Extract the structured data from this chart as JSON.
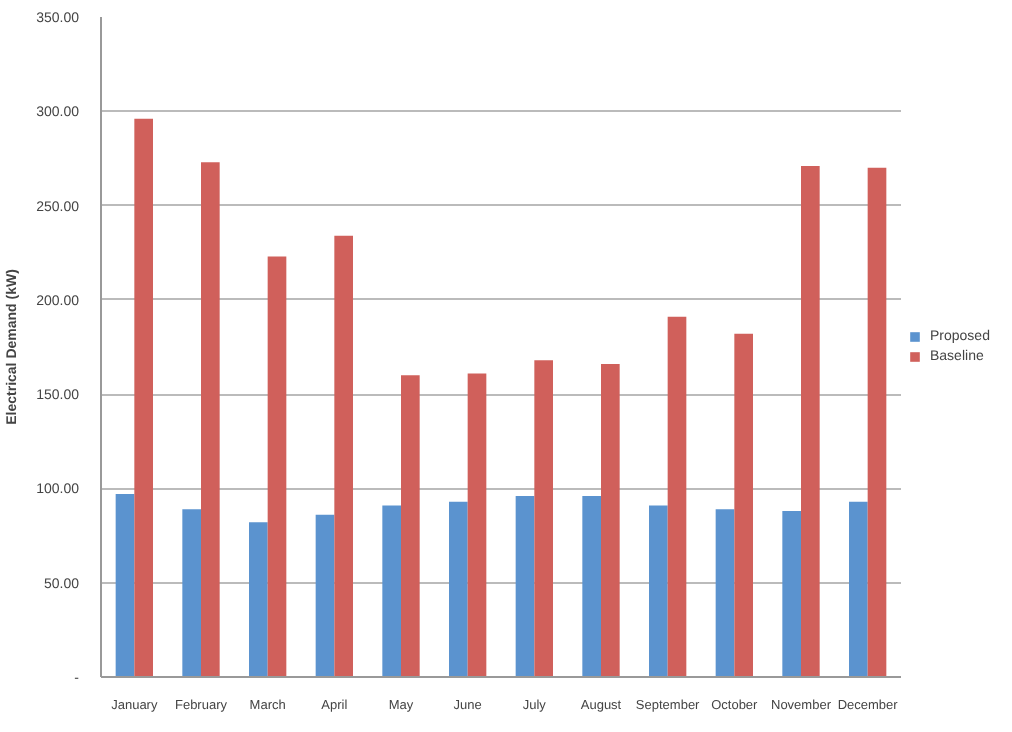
{
  "chart_data": {
    "type": "bar",
    "ylabel": "Electrical Demand (kW)",
    "categories": [
      "January",
      "February",
      "March",
      "April",
      "May",
      "June",
      "July",
      "August",
      "September",
      "October",
      "November",
      "December"
    ],
    "series": [
      {
        "name": "Proposed",
        "color": "#5b93cf",
        "values": [
          97,
          89,
          82,
          86,
          91,
          93,
          96,
          96,
          91,
          89,
          88,
          93
        ]
      },
      {
        "name": "Baseline",
        "color": "#d0605b",
        "values": [
          296,
          273,
          223,
          234,
          160,
          161,
          168,
          166,
          191,
          182,
          271,
          270
        ]
      }
    ],
    "ylim": [
      0,
      350
    ],
    "yticks": [
      {
        "value": 0,
        "label": "-"
      },
      {
        "value": 50,
        "label": "50.00"
      },
      {
        "value": 100,
        "label": "100.00"
      },
      {
        "value": 150,
        "label": "150.00"
      },
      {
        "value": 200,
        "label": "200.00"
      },
      {
        "value": 250,
        "label": "250.00"
      },
      {
        "value": 300,
        "label": "300.00"
      },
      {
        "value": 350,
        "label": "350.00"
      }
    ],
    "grid": "y",
    "legend": "right"
  }
}
